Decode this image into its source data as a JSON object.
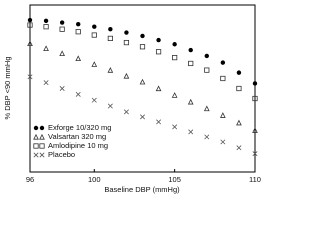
{
  "chart_data": {
    "type": "scatter",
    "x_label": "Baseline DBP (mmHg)",
    "y_label": "% DBP <90 mmHg",
    "x": [
      96,
      97,
      98,
      99,
      100,
      101,
      102,
      103,
      104,
      105,
      106,
      107,
      108,
      109,
      110
    ],
    "series": [
      {
        "name": "Exforge 10/320 mg",
        "color": "#000000",
        "marker": "circle-filled",
        "values": [
          91,
          90.5,
          89.5,
          88.5,
          87,
          85.5,
          83.5,
          81.5,
          79,
          76.5,
          73,
          69.5,
          65.5,
          59.5,
          53
        ]
      },
      {
        "name": "Valsartan 320 mg",
        "color": "#333333",
        "marker": "triangle",
        "values": [
          77,
          74,
          71,
          68,
          64.5,
          61,
          57.5,
          54,
          50,
          46,
          42,
          38,
          34,
          29.5,
          25
        ]
      },
      {
        "name": "Amlodipine 10 mg",
        "color": "#333333",
        "marker": "square",
        "values": [
          88,
          87,
          85.5,
          84,
          82,
          80,
          77.5,
          75,
          72,
          68.5,
          65,
          61,
          56,
          50,
          44
        ]
      },
      {
        "name": "Placebo",
        "color": "#555555",
        "marker": "x",
        "values": [
          57,
          53.5,
          50,
          46.5,
          43,
          39.5,
          36,
          33,
          30,
          27,
          24,
          21,
          18,
          14.5,
          11
        ]
      }
    ],
    "xlim": [
      96,
      110
    ],
    "ylim": [
      0,
      100
    ],
    "xticks": [
      96,
      100,
      105,
      110
    ],
    "legend": "lower-left"
  }
}
